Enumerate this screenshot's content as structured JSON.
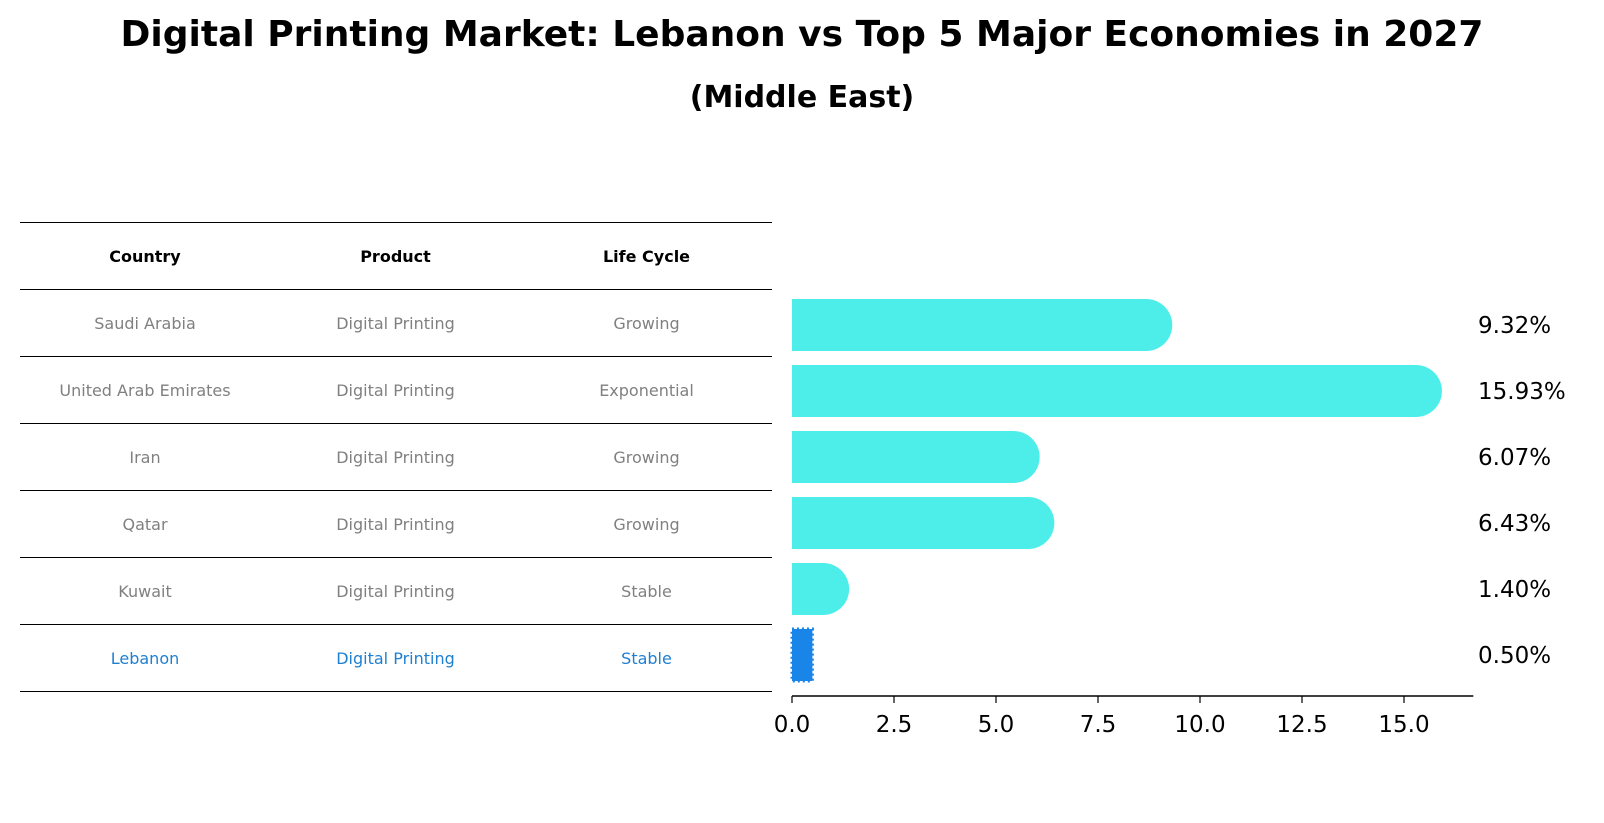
{
  "title": "Digital Printing Market: Lebanon vs Top 5 Major Economies in 2027",
  "subtitle": "(Middle East)",
  "table": {
    "headers": [
      "Country",
      "Product",
      "Life Cycle"
    ],
    "rows": [
      [
        "Saudi Arabia",
        "Digital Printing",
        "Growing"
      ],
      [
        "United Arab Emirates",
        "Digital Printing",
        "Exponential"
      ],
      [
        "Iran",
        "Digital Printing",
        "Growing"
      ],
      [
        "Qatar",
        "Digital Printing",
        "Growing"
      ],
      [
        "Kuwait",
        "Digital Printing",
        "Stable"
      ],
      [
        "Lebanon",
        "Digital Printing",
        "Stable"
      ]
    ],
    "highlight_row": 5
  },
  "chart_data": {
    "type": "bar",
    "orientation": "horizontal",
    "categories": [
      "Saudi Arabia",
      "United Arab Emirates",
      "Iran",
      "Qatar",
      "Kuwait",
      "Lebanon"
    ],
    "values": [
      9.32,
      15.93,
      6.07,
      6.43,
      1.4,
      0.5
    ],
    "value_labels": [
      "9.32%",
      "15.93%",
      "6.07%",
      "6.43%",
      "1.40%",
      "0.50%"
    ],
    "xticks": [
      "0.0",
      "2.5",
      "5.0",
      "7.5",
      "10.0",
      "12.5",
      "15.0"
    ],
    "xtick_values": [
      0,
      2.5,
      5,
      7.5,
      10,
      12.5,
      15
    ],
    "xlim": [
      0,
      16.7
    ],
    "xlabel": "",
    "ylabel": "",
    "grid": false,
    "colors": {
      "bar": "#4deeea",
      "highlight": "#1a85e8"
    }
  }
}
